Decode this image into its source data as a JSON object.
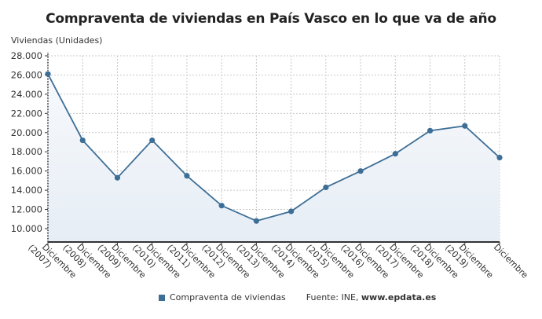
{
  "chart_data": {
    "type": "area",
    "title": "Compraventa de viviendas en País Vasco en lo que va de año",
    "xlabel": "",
    "ylabel": "Viviendas (Unidades)",
    "ylim": [
      8500,
      28000
    ],
    "yticks": [
      "28.000",
      "26.000",
      "24.000",
      "22.000",
      "20.000",
      "18.000",
      "16.000",
      "14.000",
      "12.000",
      "10.000"
    ],
    "grid": true,
    "legend_position": "bottom",
    "categories": [
      "Diciembre (2007)",
      "Diciembre (2008)",
      "Diciembre (2009)",
      "Diciembre (2010)",
      "Diciembre (2011)",
      "Diciembre (2012)",
      "Diciembre (2013)",
      "Diciembre (2014)",
      "Diciembre (2015)",
      "Diciembre (2016)",
      "Diciembre (2017)",
      "Diciembre (2018)",
      "Diciembre (2019)",
      "Diciembre"
    ],
    "series": [
      {
        "name": "Compraventa de viviendas",
        "color": "#3d6e96",
        "values": [
          26100,
          19200,
          15300,
          19200,
          15500,
          12400,
          10800,
          11800,
          14300,
          16000,
          17800,
          20200,
          20700,
          17400
        ]
      }
    ],
    "source": "Fuente: INE, www.epdata.es"
  },
  "legend": {
    "label": "Compraventa de viviendas",
    "source_prefix": "Fuente: INE, ",
    "source_site": "www.epdata.es"
  },
  "colors": {
    "line": "#3d6e96",
    "fill": "#e6edf5",
    "grid": "#c8c8c8",
    "axis": "#333333"
  }
}
